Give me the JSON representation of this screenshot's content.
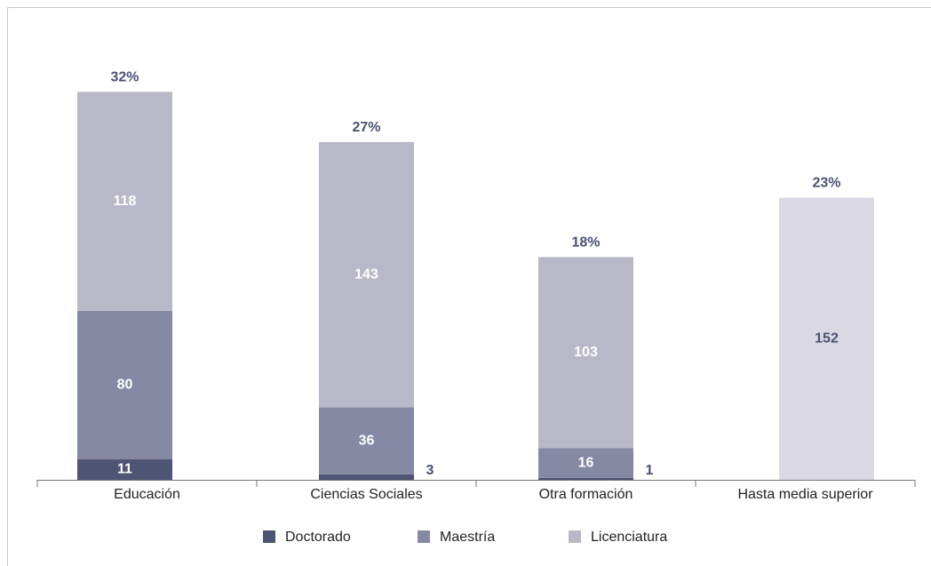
{
  "chart_data": {
    "type": "stacked_bar",
    "categories": [
      "Educación",
      "Ciencias Sociales",
      "Otra formación",
      "Hasta media superior"
    ],
    "series": [
      {
        "name": "Doctorado",
        "color": "#4d5474",
        "values": [
          11,
          3,
          1,
          null
        ]
      },
      {
        "name": "Maestría",
        "color": "#8589a3",
        "values": [
          80,
          36,
          16,
          null
        ]
      },
      {
        "name": "Licenciatura",
        "color": "#b9b8c8",
        "values": [
          118,
          143,
          103,
          null
        ]
      },
      {
        "color": "#d9d8e3",
        "values": [
          null,
          null,
          null,
          152
        ]
      }
    ],
    "percent_values": [
      32,
      27,
      18,
      23
    ],
    "percent_labels": [
      "32%",
      "27%",
      "18%",
      "23%"
    ],
    "ylim": [
      0,
      225
    ],
    "grid": false,
    "legend": "bottom"
  }
}
